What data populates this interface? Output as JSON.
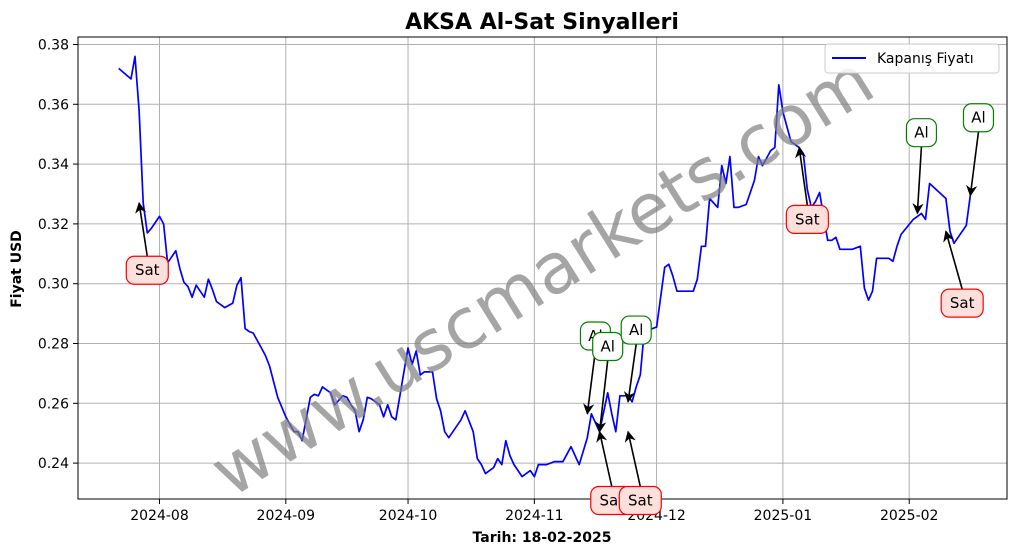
{
  "chart_data": {
    "type": "line",
    "title": "AKSA Al-Sat Sinyalleri",
    "xlabel": "Tarih: 18-02-2025",
    "ylabel": "Fiyat USD",
    "ylim": [
      0.228,
      0.3825
    ],
    "xlim": [
      "2024-07-12",
      "2025-02-25"
    ],
    "grid": true,
    "legend_position": "top-right",
    "x_ticks": [
      "2024-08-01",
      "2024-09-01",
      "2024-10-01",
      "2024-11-01",
      "2024-12-01",
      "2025-01-01",
      "2025-02-01"
    ],
    "x_tick_labels": [
      "2024-08",
      "2024-09",
      "2024-10",
      "2024-11",
      "2024-12",
      "2025-01",
      "2025-02"
    ],
    "y_ticks": [
      0.24,
      0.26,
      0.28,
      0.3,
      0.32,
      0.34,
      0.36,
      0.38
    ],
    "y_tick_labels": [
      "0.24",
      "0.26",
      "0.28",
      "0.30",
      "0.32",
      "0.34",
      "0.36",
      "0.38"
    ],
    "series": [
      {
        "name": "Kapanış Fiyatı",
        "color": "#0000ff",
        "x": [
          "2024-07-22",
          "2024-07-25",
          "2024-07-26",
          "2024-07-27",
          "2024-07-28",
          "2024-07-29",
          "2024-07-30",
          "2024-07-31",
          "2024-08-01",
          "2024-08-02",
          "2024-08-03",
          "2024-08-05",
          "2024-08-06",
          "2024-08-07",
          "2024-08-08",
          "2024-08-09",
          "2024-08-10",
          "2024-08-12",
          "2024-08-13",
          "2024-08-14",
          "2024-08-15",
          "2024-08-17",
          "2024-08-19",
          "2024-08-20",
          "2024-08-21",
          "2024-08-22",
          "2024-08-23",
          "2024-08-24",
          "2024-08-26",
          "2024-08-27",
          "2024-08-28",
          "2024-08-30",
          "2024-09-01",
          "2024-09-03",
          "2024-09-04",
          "2024-09-05",
          "2024-09-07",
          "2024-09-08",
          "2024-09-09",
          "2024-09-10",
          "2024-09-12",
          "2024-09-13",
          "2024-09-15",
          "2024-09-16",
          "2024-09-17",
          "2024-09-18",
          "2024-09-19",
          "2024-09-20",
          "2024-09-21",
          "2024-09-22",
          "2024-09-23",
          "2024-09-24",
          "2024-09-25",
          "2024-09-26",
          "2024-09-27",
          "2024-09-28",
          "2024-10-01",
          "2024-10-02",
          "2024-10-03",
          "2024-10-04",
          "2024-10-05",
          "2024-10-07",
          "2024-10-08",
          "2024-10-09",
          "2024-10-10",
          "2024-10-11",
          "2024-10-12",
          "2024-10-14",
          "2024-10-15",
          "2024-10-17",
          "2024-10-18",
          "2024-10-19",
          "2024-10-20",
          "2024-10-22",
          "2024-10-23",
          "2024-10-24",
          "2024-10-25",
          "2024-10-26",
          "2024-10-27",
          "2024-10-29",
          "2024-10-31",
          "2024-11-01",
          "2024-11-02",
          "2024-11-04",
          "2024-11-06",
          "2024-11-08",
          "2024-11-10",
          "2024-11-12",
          "2024-11-14",
          "2024-11-15",
          "2024-11-17",
          "2024-11-19",
          "2024-11-20",
          "2024-11-21",
          "2024-11-22",
          "2024-11-23",
          "2024-11-24",
          "2024-11-25",
          "2024-11-26",
          "2024-11-27",
          "2024-11-28",
          "2024-11-29",
          "2024-12-01",
          "2024-12-03",
          "2024-12-04",
          "2024-12-05",
          "2024-12-06",
          "2024-12-07",
          "2024-12-09",
          "2024-12-10",
          "2024-12-11",
          "2024-12-12",
          "2024-12-13",
          "2024-12-14",
          "2024-12-16",
          "2024-12-17",
          "2024-12-18",
          "2024-12-19",
          "2024-12-20",
          "2024-12-21",
          "2024-12-23",
          "2024-12-25",
          "2024-12-26",
          "2024-12-27",
          "2024-12-29",
          "2024-12-30",
          "2024-12-31",
          "2025-01-01",
          "2025-01-03",
          "2025-01-05",
          "2025-01-06",
          "2025-01-07",
          "2025-01-08",
          "2025-01-09",
          "2025-01-10",
          "2025-01-11",
          "2025-01-12",
          "2025-01-13",
          "2025-01-14",
          "2025-01-15",
          "2025-01-16",
          "2025-01-18",
          "2025-01-20",
          "2025-01-21",
          "2025-01-22",
          "2025-01-23",
          "2025-01-24",
          "2025-01-27",
          "2025-01-28",
          "2025-01-29",
          "2025-01-30",
          "2025-02-02",
          "2025-02-03",
          "2025-02-04",
          "2025-02-05",
          "2025-02-06",
          "2025-02-10",
          "2025-02-11",
          "2025-02-12",
          "2025-02-15",
          "2025-02-16"
        ],
        "values": [
          0.372,
          0.3685,
          0.376,
          0.358,
          0.327,
          0.317,
          0.3185,
          0.3205,
          0.3225,
          0.32,
          0.307,
          0.311,
          0.305,
          0.3005,
          0.299,
          0.2955,
          0.2995,
          0.2955,
          0.3015,
          0.298,
          0.294,
          0.292,
          0.2935,
          0.2995,
          0.302,
          0.285,
          0.284,
          0.2835,
          0.2785,
          0.276,
          0.2725,
          0.262,
          0.2555,
          0.2505,
          0.2505,
          0.2475,
          0.262,
          0.263,
          0.2625,
          0.2655,
          0.2635,
          0.2595,
          0.2625,
          0.262,
          0.2595,
          0.2575,
          0.2505,
          0.2545,
          0.262,
          0.2615,
          0.2605,
          0.2595,
          0.2555,
          0.2595,
          0.2555,
          0.2545,
          0.2785,
          0.273,
          0.2775,
          0.2695,
          0.2705,
          0.2705,
          0.2615,
          0.2575,
          0.2505,
          0.2485,
          0.2505,
          0.2545,
          0.2575,
          0.2505,
          0.2415,
          0.2395,
          0.2365,
          0.2385,
          0.2415,
          0.2395,
          0.2475,
          0.2425,
          0.2395,
          0.2355,
          0.2375,
          0.2355,
          0.2395,
          0.2395,
          0.2405,
          0.2405,
          0.2455,
          0.2395,
          0.2485,
          0.2565,
          0.2505,
          0.2635,
          0.2565,
          0.2505,
          0.2625,
          0.2625,
          0.2625,
          0.2605,
          0.2655,
          0.2695,
          0.2845,
          0.2845,
          0.2855,
          0.3055,
          0.3065,
          0.3025,
          0.2975,
          0.2975,
          0.2975,
          0.2975,
          0.3015,
          0.3125,
          0.3125,
          0.3285,
          0.3255,
          0.3395,
          0.3335,
          0.3425,
          0.3255,
          0.3255,
          0.3265,
          0.3345,
          0.3425,
          0.3395,
          0.3445,
          0.3455,
          0.3665,
          0.3575,
          0.3475,
          0.3455,
          0.3435,
          0.3315,
          0.3255,
          0.3275,
          0.3305,
          0.3225,
          0.3145,
          0.3145,
          0.3155,
          0.3115,
          0.3115,
          0.3115,
          0.3125,
          0.2985,
          0.2945,
          0.2975,
          0.3085,
          0.3085,
          0.3075,
          0.3125,
          0.3165,
          0.3215,
          0.3225,
          0.3235,
          0.3215,
          0.3335,
          0.3285,
          0.3175,
          0.3135,
          0.3195,
          0.3295
        ]
      }
    ],
    "signals": [
      {
        "label": "Sat",
        "kind": "sell",
        "x": "2024-07-27",
        "y": 0.327,
        "label_x": "2024-07-29",
        "label_y": 0.3045
      },
      {
        "label": "Al",
        "kind": "buy",
        "x": "2024-11-14",
        "y": 0.2565,
        "label_x": "2024-11-16",
        "label_y": 0.2825
      },
      {
        "label": "Al",
        "kind": "buy",
        "x": "2024-11-17",
        "y": 0.2505,
        "label_x": "2024-11-19",
        "label_y": 0.279
      },
      {
        "label": "Sat",
        "kind": "sell",
        "x": "2024-11-17",
        "y": 0.2505,
        "label_x": "2024-11-20",
        "label_y": 0.2275
      },
      {
        "label": "Al",
        "kind": "buy",
        "x": "2024-11-24",
        "y": 0.2605,
        "label_x": "2024-11-26",
        "label_y": 0.2845
      },
      {
        "label": "Sat",
        "kind": "sell",
        "x": "2024-11-24",
        "y": 0.2505,
        "label_x": "2024-11-27",
        "label_y": 0.2275
      },
      {
        "label": "Sat",
        "kind": "sell",
        "x": "2025-01-05",
        "y": 0.3455,
        "label_x": "2025-01-07",
        "label_y": 0.3215
      },
      {
        "label": "Al",
        "kind": "buy",
        "x": "2025-02-03",
        "y": 0.3235,
        "label_x": "2025-02-04",
        "label_y": 0.3505
      },
      {
        "label": "Sat",
        "kind": "sell",
        "x": "2025-02-10",
        "y": 0.3175,
        "label_x": "2025-02-14",
        "label_y": 0.2935
      },
      {
        "label": "Al",
        "kind": "buy",
        "x": "2025-02-16",
        "y": 0.3295,
        "label_x": "2025-02-18",
        "label_y": 0.3555
      }
    ],
    "watermark": "www.uscmarkets.com"
  }
}
